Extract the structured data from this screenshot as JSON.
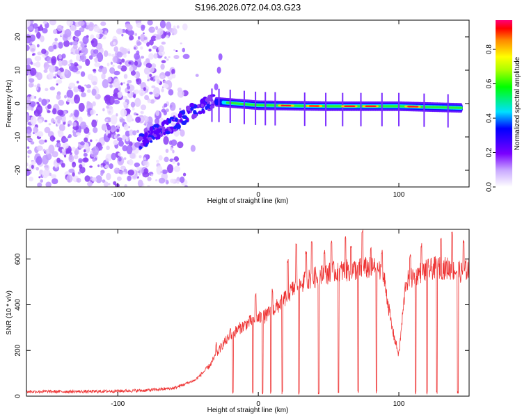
{
  "chart_data": [
    {
      "type": "heatmap",
      "title": "S196.2026.072.04.03.G23",
      "xlabel": "Height of straight line (km)",
      "ylabel": "Frequency (Hz)",
      "xlim": [
        -165,
        150
      ],
      "ylim": [
        -25,
        25
      ],
      "xticks": [
        -100,
        0,
        100
      ],
      "xtick_labels": [
        "-100",
        "0",
        "100"
      ],
      "yticks": [
        -20,
        -10,
        0,
        10,
        20
      ],
      "ytick_labels": [
        "-20",
        "-10",
        "0",
        "10",
        "20"
      ],
      "colorbar": {
        "label": "Normalized spectral amplitude",
        "range": [
          0.0,
          0.97
        ],
        "ticks": [
          0.0,
          0.2,
          0.4,
          0.6,
          0.8
        ],
        "tick_labels": [
          "0.0",
          "0.2",
          "0.4",
          "0.6",
          "0.8"
        ],
        "colormap": "rainbow (white-violet to red-magenta)"
      },
      "features": {
        "noise_region_km": [
          -165,
          -55
        ],
        "ascending_trace": {
          "x_km": [
            -85,
            -75,
            -60,
            -50,
            -40,
            -30
          ],
          "freq_hz": [
            -12,
            -9,
            -6,
            -3,
            -1,
            1
          ]
        },
        "carrier_line": {
          "x_km": [
            -30,
            0,
            50,
            100,
            145
          ],
          "freq_hz": [
            0.5,
            -0.5,
            -0.8,
            -0.8,
            -1.3
          ]
        },
        "peak_segments_km": [
          [
            15,
            25
          ],
          [
            35,
            45
          ],
          [
            60,
            70
          ],
          [
            75,
            85
          ],
          [
            105,
            115
          ]
        ]
      }
    },
    {
      "type": "line",
      "xlabel": "Height of straight line (km)",
      "ylabel": "SNR (10 * v/v)",
      "xlim": [
        -165,
        150
      ],
      "ylim": [
        0,
        730
      ],
      "xticks": [
        -100,
        0,
        100
      ],
      "xtick_labels": [
        "-100",
        "0",
        "100"
      ],
      "yticks": [
        0,
        200,
        400,
        600
      ],
      "ytick_labels": [
        "0",
        "200",
        "400",
        "600"
      ],
      "series": [
        {
          "name": "SNR",
          "color": "#ee3333",
          "envelope": {
            "x": [
              -165,
              -120,
              -80,
              -60,
              -45,
              -35,
              -25,
              -15,
              -5,
              5,
              15,
              25,
              35,
              45,
              55,
              65,
              75,
              85,
              90,
              95,
              100,
              105,
              115,
              125,
              135,
              145,
              150
            ],
            "y": [
              20,
              20,
              25,
              35,
              70,
              130,
              230,
              290,
              330,
              350,
              400,
              470,
              510,
              530,
              545,
              550,
              560,
              560,
              500,
              300,
              180,
              500,
              540,
              560,
              560,
              540,
              560
            ]
          },
          "dropouts_km": [
            -18,
            -4,
            3,
            9,
            17,
            29,
            43,
            57,
            71,
            84,
            112,
            120,
            127,
            142
          ],
          "spikes": [
            {
              "x": -30,
              "y": 240
            },
            {
              "x": -20,
              "y": 300
            },
            {
              "x": -2,
              "y": 450
            },
            {
              "x": 10,
              "y": 470
            },
            {
              "x": 21,
              "y": 600
            },
            {
              "x": 27,
              "y": 670
            },
            {
              "x": 34,
              "y": 640
            },
            {
              "x": 38,
              "y": 680
            },
            {
              "x": 47,
              "y": 640
            },
            {
              "x": 52,
              "y": 680
            },
            {
              "x": 62,
              "y": 700
            },
            {
              "x": 66,
              "y": 660
            },
            {
              "x": 74,
              "y": 730
            },
            {
              "x": 80,
              "y": 660
            },
            {
              "x": 88,
              "y": 640
            },
            {
              "x": 108,
              "y": 620
            },
            {
              "x": 116,
              "y": 670
            },
            {
              "x": 130,
              "y": 700
            },
            {
              "x": 138,
              "y": 720
            },
            {
              "x": 146,
              "y": 690
            }
          ]
        }
      ]
    }
  ]
}
